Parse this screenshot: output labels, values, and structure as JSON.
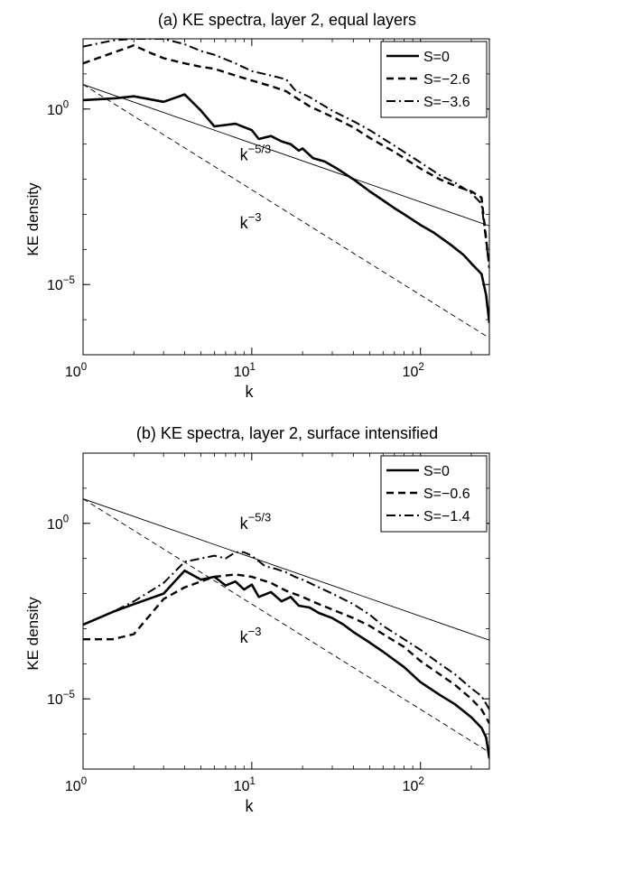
{
  "chart_data": [
    {
      "type": "line",
      "title": "(a) KE spectra, layer 2, equal layers",
      "xlabel": "k",
      "ylabel": "KE density",
      "xscale": "log",
      "yscale": "log",
      "xlim": [
        1,
        256
      ],
      "ylim": [
        1e-07,
        100.0
      ],
      "x_ticks": [
        {
          "base": "10",
          "exp": "0"
        },
        {
          "base": "10",
          "exp": "1"
        },
        {
          "base": "10",
          "exp": "2"
        }
      ],
      "y_ticks": [
        {
          "base": "10",
          "exp": "0",
          "value": 1
        },
        {
          "base": "10",
          "exp": "−5",
          "value": 1e-05
        }
      ],
      "legend": {
        "placement": "top-right",
        "entries": [
          {
            "label": "S=0",
            "style": "solid"
          },
          {
            "label": "S=−2.6",
            "style": "dashed"
          },
          {
            "label": "S=−3.6",
            "style": "dashdot"
          }
        ]
      },
      "annotations": [
        {
          "base": "k",
          "exp": "−5/3",
          "x": 8.5,
          "y": 0.035
        },
        {
          "base": "k",
          "exp": "−3",
          "x": 8.5,
          "y": 0.0004
        }
      ],
      "reference_lines": [
        {
          "name": "k^-5/3",
          "style": "thin-solid",
          "x": [
            1,
            256
          ],
          "y": [
            5,
            0.00047
          ]
        },
        {
          "name": "k^-3",
          "style": "thin-dashed",
          "x": [
            1,
            256
          ],
          "y": [
            5,
            3e-07
          ]
        }
      ],
      "series": [
        {
          "label": "S=0",
          "style": "solid",
          "x": [
            1,
            1.5,
            2,
            3,
            4,
            5,
            6,
            8,
            10,
            11,
            13,
            15,
            17,
            19,
            20,
            23,
            27,
            32,
            40,
            50,
            60,
            70,
            80,
            100,
            120,
            150,
            180,
            200,
            230,
            245,
            256
          ],
          "y": [
            1.8,
            2.0,
            2.3,
            1.6,
            2.6,
            0.9,
            0.32,
            0.38,
            0.25,
            0.14,
            0.17,
            0.12,
            0.1,
            0.065,
            0.075,
            0.04,
            0.032,
            0.02,
            0.01,
            0.0045,
            0.0025,
            0.0015,
            0.001,
            0.0005,
            0.0003,
            0.00014,
            7e-05,
            4e-05,
            2e-05,
            5e-06,
            8e-07
          ]
        },
        {
          "label": "S=−2.6",
          "style": "dashed",
          "x": [
            1,
            1.5,
            2,
            2.5,
            3,
            4,
            5,
            6,
            8,
            10,
            13,
            16,
            18,
            22,
            30,
            40,
            50,
            70,
            100,
            130,
            160,
            200,
            230,
            256
          ],
          "y": [
            20,
            40,
            65,
            40,
            28,
            20,
            16,
            14,
            9,
            6.5,
            4.5,
            3.2,
            2.2,
            1.2,
            0.6,
            0.3,
            0.15,
            0.06,
            0.02,
            0.01,
            0.0065,
            0.0045,
            0.003,
            3e-05
          ]
        },
        {
          "label": "S=−3.6",
          "style": "dashdot",
          "x": [
            1,
            1.5,
            2,
            3,
            4,
            5,
            6,
            8,
            10,
            13,
            16,
            18,
            22,
            30,
            40,
            50,
            70,
            100,
            130,
            160,
            200,
            230,
            256
          ],
          "y": [
            60,
            90,
            110,
            110,
            70,
            45,
            35,
            20,
            12,
            9,
            7,
            3.5,
            2.2,
            0.9,
            0.45,
            0.25,
            0.09,
            0.03,
            0.013,
            0.008,
            0.004,
            0.002,
            3e-05
          ]
        }
      ]
    },
    {
      "type": "line",
      "title": "(b) KE spectra, layer 2, surface intensified",
      "xlabel": "k",
      "ylabel": "KE density",
      "xscale": "log",
      "yscale": "log",
      "xlim": [
        1,
        256
      ],
      "ylim": [
        1e-07,
        100.0
      ],
      "x_ticks": [
        {
          "base": "10",
          "exp": "0"
        },
        {
          "base": "10",
          "exp": "1"
        },
        {
          "base": "10",
          "exp": "2"
        }
      ],
      "y_ticks": [
        {
          "base": "10",
          "exp": "0",
          "value": 1
        },
        {
          "base": "10",
          "exp": "−5",
          "value": 1e-05
        }
      ],
      "legend": {
        "placement": "top-right",
        "entries": [
          {
            "label": "S=0",
            "style": "solid"
          },
          {
            "label": "S=−0.6",
            "style": "dashed"
          },
          {
            "label": "S=−1.4",
            "style": "dashdot"
          }
        ]
      },
      "annotations": [
        {
          "base": "k",
          "exp": "−5/3",
          "x": 8.5,
          "y": 0.7
        },
        {
          "base": "k",
          "exp": "−3",
          "x": 8.5,
          "y": 0.0004
        }
      ],
      "reference_lines": [
        {
          "name": "k^-5/3",
          "style": "thin-solid",
          "x": [
            1,
            256
          ],
          "y": [
            5,
            0.00047
          ]
        },
        {
          "name": "k^-3",
          "style": "thin-dashed",
          "x": [
            1,
            256
          ],
          "y": [
            5,
            3e-07
          ]
        }
      ],
      "series": [
        {
          "label": "S=0",
          "style": "solid",
          "x": [
            1,
            1.5,
            2,
            3,
            4,
            5,
            6,
            7,
            8,
            9,
            10,
            11,
            13,
            15,
            17,
            19,
            22,
            25,
            30,
            35,
            40,
            50,
            60,
            80,
            100,
            130,
            160,
            200,
            230,
            245,
            256
          ],
          "y": [
            0.0013,
            0.003,
            0.005,
            0.01,
            0.045,
            0.025,
            0.03,
            0.017,
            0.022,
            0.013,
            0.018,
            0.008,
            0.011,
            0.006,
            0.008,
            0.0045,
            0.004,
            0.0028,
            0.002,
            0.0013,
            0.0008,
            0.0004,
            0.00022,
            8e-05,
            3e-05,
            1.3e-05,
            7e-06,
            3e-06,
            1.5e-06,
            8e-07,
            2e-07
          ]
        },
        {
          "label": "S=−0.6",
          "style": "dashed",
          "x": [
            1,
            1.5,
            2,
            3,
            4,
            5,
            6,
            8,
            10,
            13,
            16,
            20,
            25,
            30,
            40,
            50,
            60,
            80,
            100,
            130,
            160,
            200,
            230,
            256
          ],
          "y": [
            0.0005,
            0.0005,
            0.0007,
            0.007,
            0.015,
            0.022,
            0.03,
            0.035,
            0.03,
            0.02,
            0.012,
            0.008,
            0.005,
            0.0035,
            0.002,
            0.0012,
            0.0007,
            0.0003,
            0.00012,
            5e-05,
            2.5e-05,
            1e-05,
            5e-06,
            2e-06
          ]
        },
        {
          "label": "S=−1.4",
          "style": "dashdot",
          "x": [
            1,
            1.5,
            2,
            3,
            4,
            5,
            6,
            7,
            8,
            9,
            10,
            12,
            14,
            16,
            18,
            20,
            25,
            30,
            40,
            50,
            60,
            80,
            100,
            130,
            160,
            200,
            230,
            256
          ],
          "y": [
            0.0013,
            0.003,
            0.006,
            0.02,
            0.08,
            0.1,
            0.12,
            0.1,
            0.15,
            0.15,
            0.12,
            0.06,
            0.05,
            0.04,
            0.03,
            0.025,
            0.015,
            0.01,
            0.005,
            0.0025,
            0.0012,
            0.0005,
            0.00025,
            0.0001,
            5e-05,
            2e-05,
            1.2e-05,
            5e-06
          ]
        }
      ]
    }
  ]
}
